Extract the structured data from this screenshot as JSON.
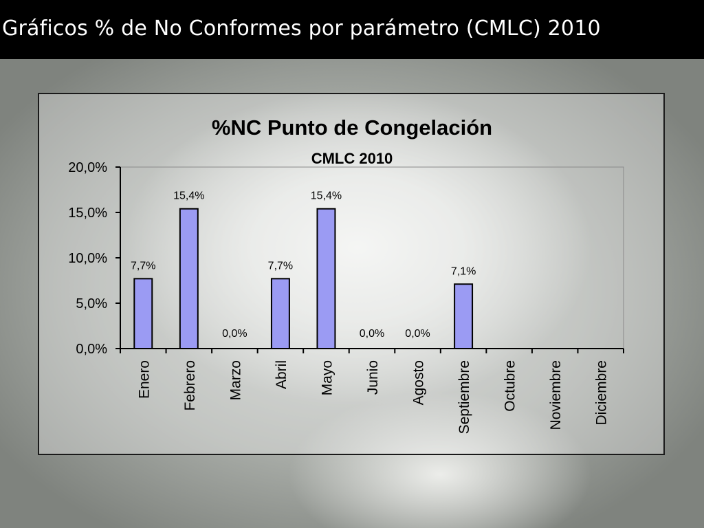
{
  "slide": {
    "title": "Gráficos % de No Conformes por parámetro (CMLC) 2010"
  },
  "chart_data": {
    "type": "bar",
    "title": "%NC Punto de Congelación",
    "subtitle": "CMLC 2010",
    "xlabel": "",
    "ylabel": "",
    "categories": [
      "Enero",
      "Febrero",
      "Marzo",
      "Abril",
      "Mayo",
      "Junio",
      "Agosto",
      "Septiembre",
      "Octubre",
      "Noviembre",
      "Diciembre"
    ],
    "values": [
      7.7,
      15.4,
      0.0,
      7.7,
      15.4,
      null,
      0.0,
      7.1,
      null,
      null,
      null
    ],
    "value_labels": [
      "7,7%",
      "15,4%",
      "0,0%",
      "7,7%",
      "15,4%",
      "0,0%",
      "0,0%",
      "7,1%",
      "",
      "",
      ""
    ],
    "ylim": [
      0,
      20
    ],
    "yticks": [
      0,
      5,
      10,
      15,
      20
    ],
    "ytick_labels": [
      "0,0%",
      "5,0%",
      "10,0%",
      "15,0%",
      "20,0%"
    ],
    "grid": false,
    "legend": "none",
    "colors": {
      "bar_fill": "#9b9bf3",
      "bar_stroke": "#000000"
    }
  }
}
